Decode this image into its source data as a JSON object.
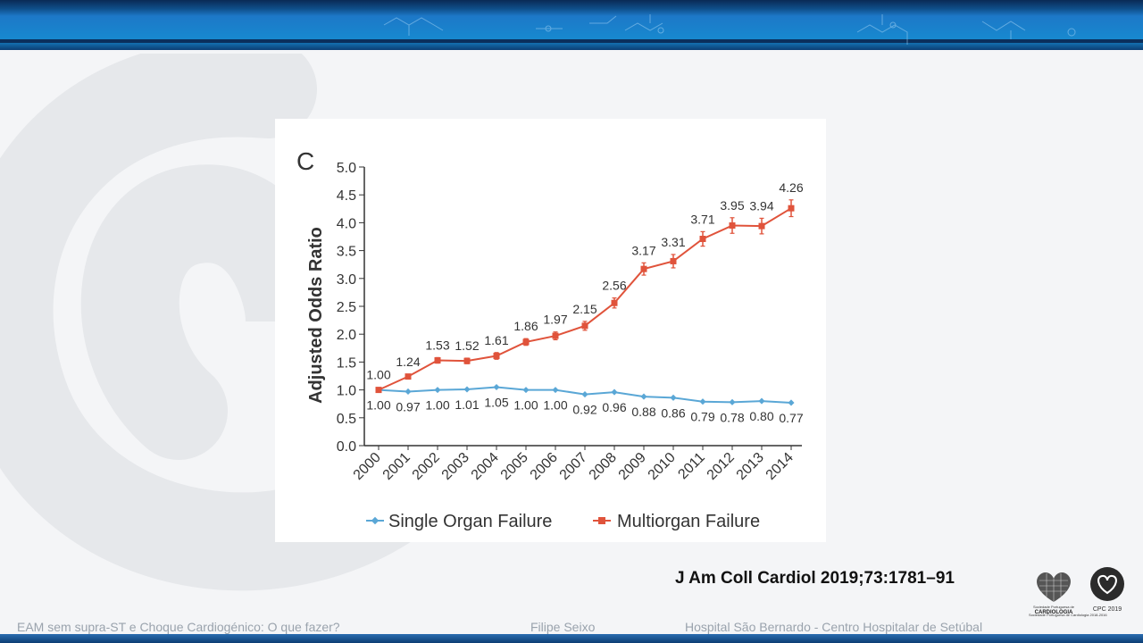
{
  "slide": {
    "citation": "J Am Coll Cardiol 2019;73:1781–91",
    "footer_left": "EAM sem supra-ST e Choque Cardiogénico: O que fazer?",
    "footer_center": "Filipe Seixo",
    "footer_right": "Hospital São Bernardo  - Centro Hospitalar de Setúbal",
    "logo_spc_line1": "Sociedade Portuguesa de",
    "logo_spc_line2": "CARDIOLOGIA",
    "logo_cpc": "CPC 2019",
    "logo_note": "Sociedade Portuguesa de Cardiologia 2018-2016",
    "colors": {
      "band": "#1789cf",
      "band_dark": "#0c3e74"
    }
  },
  "chart_data": {
    "type": "line",
    "panel_label": "C",
    "ylabel": "Adjusted Odds Ratio",
    "ylim": [
      0.0,
      5.0
    ],
    "yticks": [
      "0.0",
      "0.5",
      "1.0",
      "1.5",
      "2.0",
      "2.5",
      "3.0",
      "3.5",
      "4.0",
      "4.5",
      "5.0"
    ],
    "x": [
      "2000",
      "2001",
      "2002",
      "2003",
      "2004",
      "2005",
      "2006",
      "2007",
      "2008",
      "2009",
      "2010",
      "2011",
      "2012",
      "2013",
      "2014"
    ],
    "legend_position": "bottom",
    "grid": false,
    "series": [
      {
        "name": "Single Organ Failure",
        "color": "#5aa7d6",
        "marker": "diamond",
        "values": [
          1.0,
          0.97,
          1.0,
          1.01,
          1.05,
          1.0,
          1.0,
          0.92,
          0.96,
          0.88,
          0.86,
          0.79,
          0.78,
          0.8,
          0.77
        ],
        "labels": [
          "1.00",
          "0.97",
          "1.00",
          "1.01",
          "1.05",
          "1.00",
          "1.00",
          "0.92",
          "0.96",
          "0.88",
          "0.86",
          "0.79",
          "0.78",
          "0.80",
          "0.77"
        ]
      },
      {
        "name": "Multiorgan Failure",
        "color": "#e0533b",
        "marker": "square",
        "values": [
          1.0,
          1.24,
          1.53,
          1.52,
          1.61,
          1.86,
          1.97,
          2.15,
          2.56,
          3.17,
          3.31,
          3.71,
          3.95,
          3.94,
          4.26
        ],
        "labels": [
          "1.00",
          "1.24",
          "1.53",
          "1.52",
          "1.61",
          "1.86",
          "1.97",
          "2.15",
          "2.56",
          "3.17",
          "3.31",
          "3.71",
          "3.95",
          "3.94",
          "4.26"
        ],
        "error": [
          0.02,
          0.04,
          0.05,
          0.05,
          0.06,
          0.06,
          0.07,
          0.08,
          0.09,
          0.11,
          0.12,
          0.13,
          0.14,
          0.14,
          0.15
        ]
      }
    ]
  }
}
